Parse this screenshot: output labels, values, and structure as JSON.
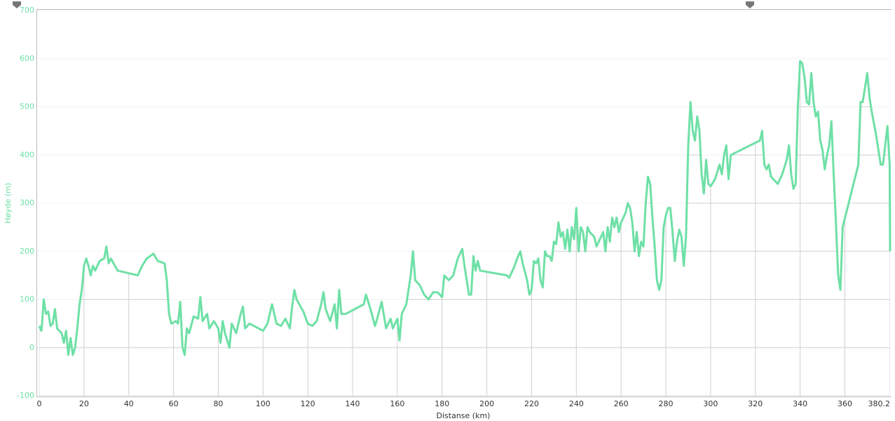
{
  "chart_data": {
    "type": "line",
    "x_label": "Distanse (km)",
    "y_label": "Høyde (m)",
    "xlim": [
      0,
      380.2
    ],
    "ylim": [
      -100,
      700
    ],
    "xticks": [
      0,
      20,
      40,
      60,
      80,
      100,
      120,
      140,
      160,
      180,
      200,
      220,
      240,
      260,
      280,
      300,
      320,
      340,
      360,
      380.2
    ],
    "yticks": [
      -100,
      0,
      100,
      200,
      300,
      400,
      500,
      600,
      700
    ],
    "grid": true,
    "x": [
      0,
      1,
      2,
      3,
      4,
      5,
      6,
      7,
      8,
      10,
      11,
      12,
      13,
      14,
      15,
      16,
      17,
      18,
      19,
      20,
      21,
      22,
      23,
      24,
      25,
      27,
      29,
      30,
      31,
      32,
      35,
      44,
      46,
      48,
      51,
      53,
      56,
      57,
      58,
      59,
      61,
      62,
      63,
      64,
      65,
      66,
      67,
      69,
      71,
      72,
      73,
      75,
      76,
      78,
      80,
      81,
      82,
      83,
      85,
      86,
      88,
      90,
      91,
      92,
      94,
      96,
      98,
      100,
      102,
      104,
      105,
      106,
      108,
      110,
      112,
      113,
      114,
      115,
      118,
      120,
      122,
      124,
      126,
      127,
      128,
      130,
      132,
      133,
      134,
      135,
      137,
      145,
      146,
      148,
      150,
      151,
      153,
      155,
      157,
      158,
      160,
      161,
      162,
      164,
      165,
      166,
      167,
      168,
      170,
      172,
      174,
      176,
      178,
      180,
      181,
      183,
      185,
      187,
      189,
      190,
      192,
      193,
      194,
      195,
      196,
      197,
      209,
      210,
      212,
      214,
      215,
      216,
      218,
      219,
      220,
      221,
      222,
      223,
      224,
      225,
      226,
      227,
      228,
      229,
      230,
      231,
      232,
      233,
      234,
      235,
      236,
      237,
      238,
      239,
      240,
      241,
      242,
      243,
      244,
      245,
      246,
      248,
      249,
      250,
      252,
      253,
      254,
      255,
      256,
      257,
      258,
      259,
      260,
      262,
      263,
      264,
      265,
      266,
      267,
      268,
      269,
      270,
      271,
      272,
      273,
      274,
      275,
      276,
      277,
      278,
      279,
      280,
      281,
      282,
      283,
      284,
      285,
      286,
      287,
      288,
      289,
      290,
      291,
      292,
      293,
      294,
      295,
      296,
      297,
      298,
      299,
      300,
      302,
      304,
      305,
      306,
      307,
      308,
      309,
      322,
      323,
      324,
      325,
      326,
      327,
      328,
      330,
      332,
      334,
      335,
      336,
      337,
      338,
      339,
      340,
      341,
      342,
      343,
      344,
      345,
      346,
      347,
      348,
      349,
      350,
      351,
      352,
      353,
      354,
      355,
      356,
      357,
      358,
      359,
      366,
      367,
      368,
      369,
      370,
      371,
      372,
      374,
      376,
      377,
      378,
      379,
      380,
      380.2
    ],
    "series": [
      {
        "name": "Høyde",
        "color": "#6ee0a6",
        "values": [
          45,
          35,
          100,
          70,
          75,
          45,
          50,
          80,
          40,
          30,
          10,
          35,
          -15,
          20,
          -15,
          0,
          40,
          90,
          120,
          170,
          185,
          170,
          150,
          170,
          160,
          180,
          185,
          210,
          175,
          185,
          160,
          150,
          170,
          185,
          195,
          180,
          175,
          140,
          70,
          50,
          55,
          50,
          95,
          0,
          -15,
          40,
          30,
          65,
          60,
          105,
          55,
          70,
          40,
          55,
          40,
          10,
          55,
          30,
          0,
          50,
          30,
          70,
          85,
          40,
          50,
          45,
          40,
          35,
          50,
          90,
          70,
          50,
          45,
          60,
          40,
          85,
          120,
          100,
          75,
          50,
          45,
          55,
          90,
          115,
          80,
          55,
          90,
          40,
          120,
          70,
          70,
          90,
          110,
          80,
          45,
          60,
          95,
          40,
          60,
          40,
          60,
          15,
          70,
          90,
          120,
          150,
          200,
          140,
          130,
          110,
          100,
          115,
          115,
          105,
          150,
          140,
          150,
          185,
          205,
          170,
          110,
          110,
          190,
          160,
          180,
          160,
          150,
          145,
          165,
          190,
          200,
          175,
          140,
          110,
          120,
          180,
          175,
          185,
          140,
          125,
          200,
          190,
          190,
          180,
          220,
          215,
          260,
          230,
          240,
          205,
          245,
          200,
          250,
          225,
          290,
          200,
          250,
          240,
          200,
          250,
          240,
          230,
          210,
          220,
          240,
          200,
          250,
          220,
          270,
          250,
          270,
          240,
          260,
          280,
          300,
          290,
          260,
          200,
          240,
          190,
          220,
          210,
          300,
          355,
          340,
          270,
          210,
          140,
          120,
          140,
          250,
          275,
          290,
          290,
          240,
          180,
          220,
          245,
          230,
          170,
          230,
          420,
          510,
          450,
          430,
          480,
          450,
          360,
          320,
          390,
          340,
          335,
          350,
          380,
          360,
          400,
          420,
          350,
          400,
          430,
          450,
          380,
          370,
          380,
          355,
          350,
          340,
          360,
          390,
          420,
          360,
          330,
          340,
          500,
          595,
          590,
          560,
          510,
          505,
          570,
          510,
          480,
          490,
          430,
          410,
          370,
          400,
          420,
          470,
          360,
          260,
          150,
          120,
          250,
          380,
          510,
          510,
          540,
          570,
          520,
          490,
          440,
          380,
          380,
          420,
          460,
          380,
          200
        ]
      }
    ]
  }
}
